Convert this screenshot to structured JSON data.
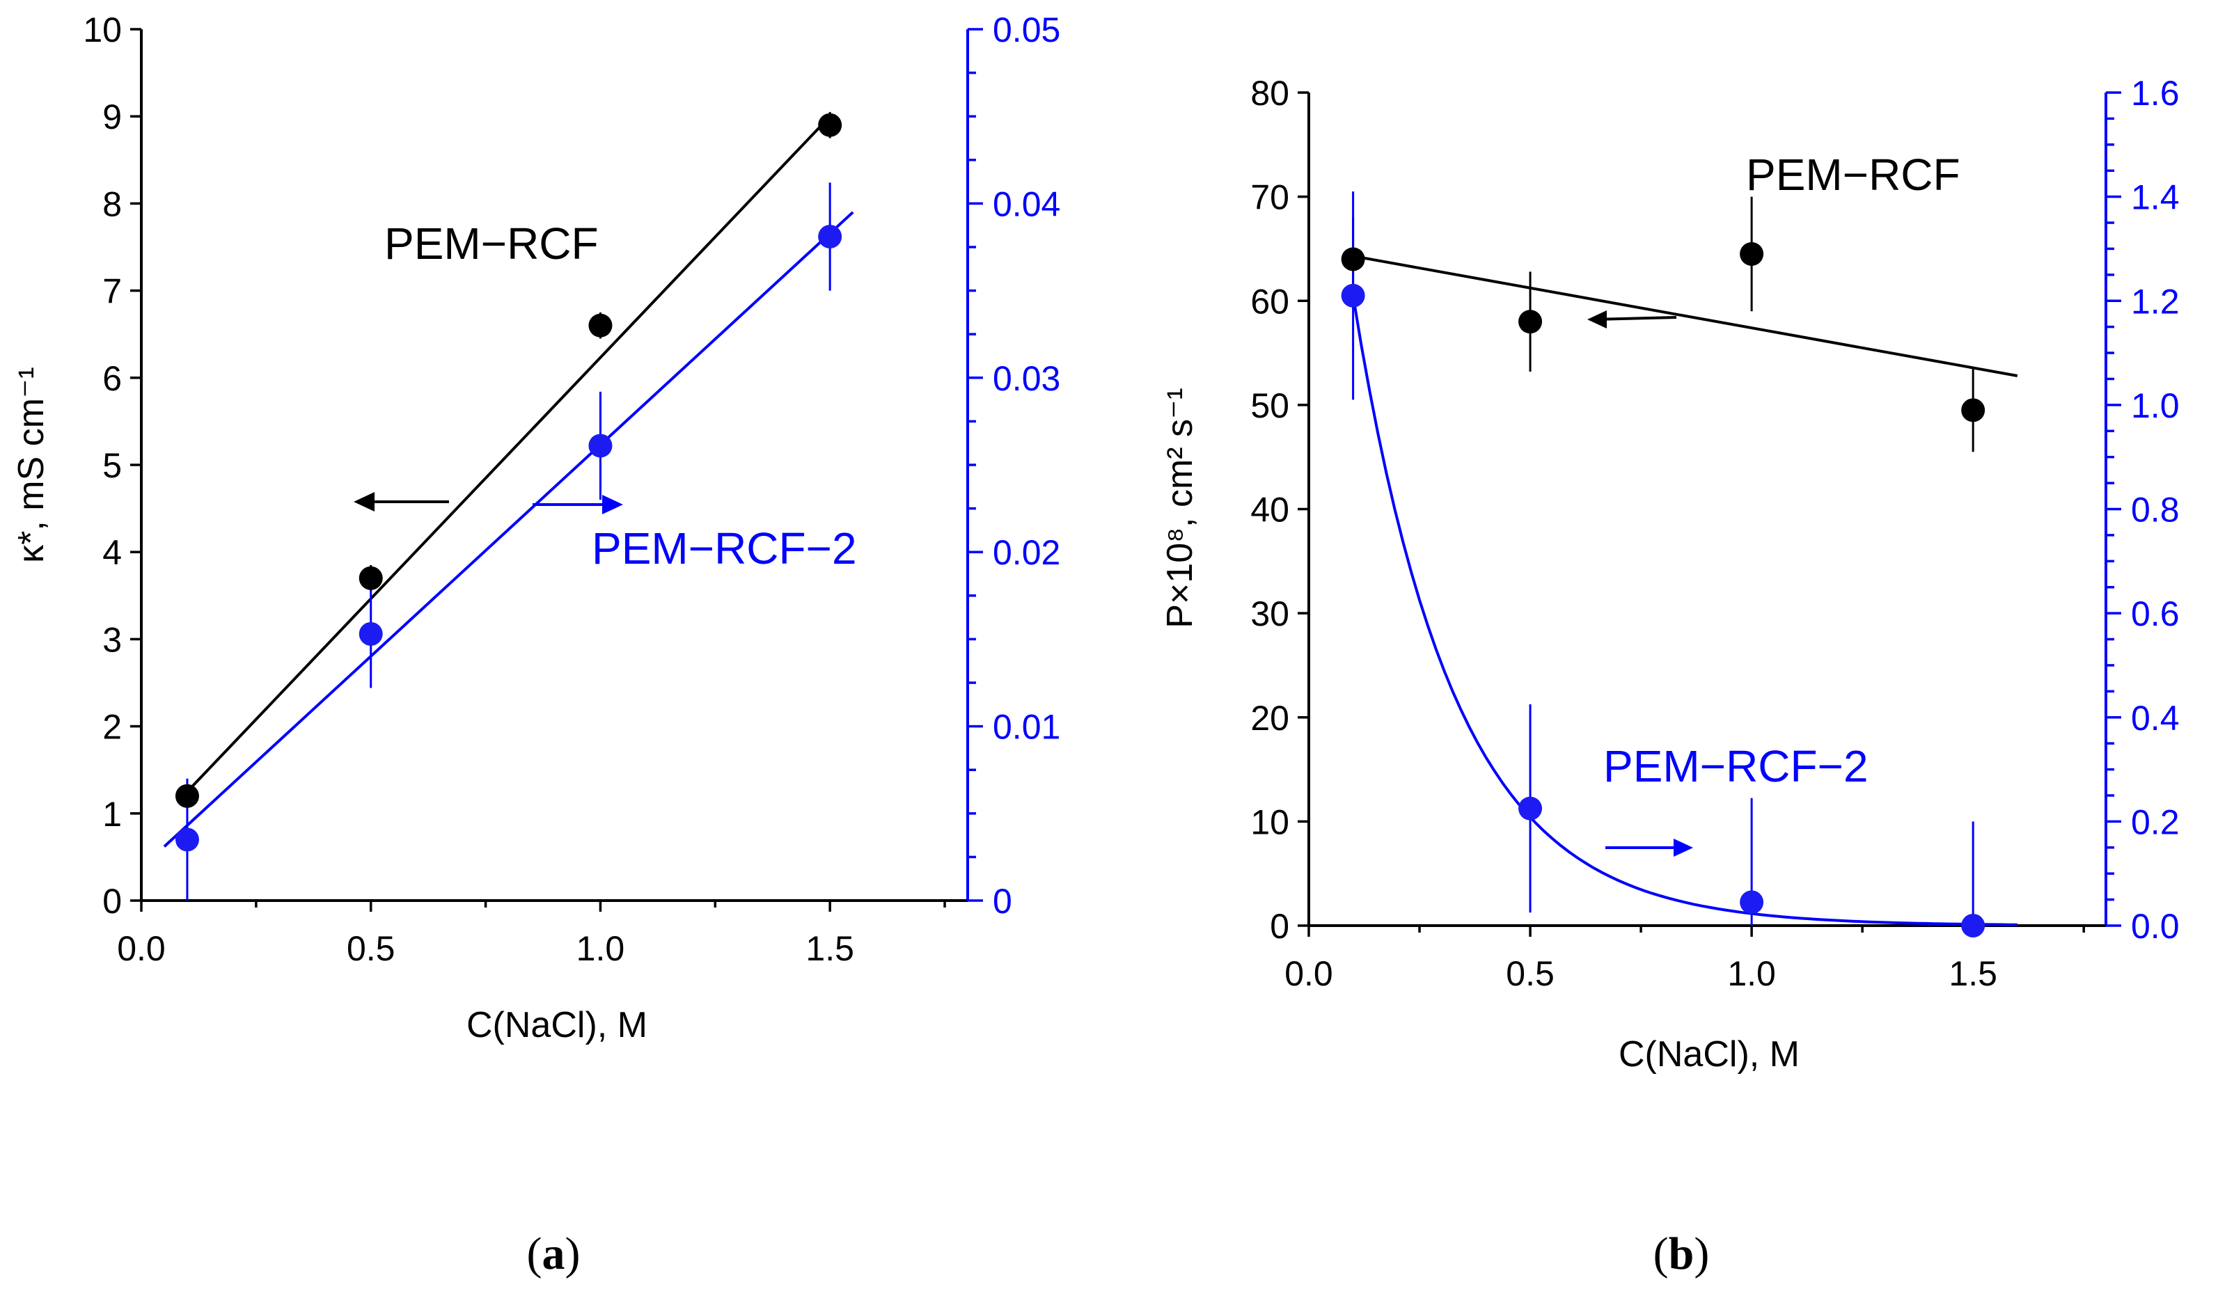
{
  "colors": {
    "black": "#000000",
    "blue": "#0000ff",
    "blue_point": "#1c1cf2"
  },
  "chart_data": [
    {
      "id": "a",
      "type": "scatter",
      "caption_open": "(",
      "caption_letter": "a",
      "caption_close": ")",
      "xlabel": "C(NaCl), M",
      "ylabel_left": "κ*, mS cm⁻¹",
      "ylabel_right": "",
      "xlim": [
        0,
        1.8
      ],
      "ylim_left": [
        0,
        10
      ],
      "ylim_right": [
        0,
        0.05
      ],
      "x_ticks": [
        0.0,
        0.5,
        1.0,
        1.5
      ],
      "x_tick_labels": [
        "0.0",
        "0.5",
        "1.0",
        "1.5"
      ],
      "y_left_ticks": [
        0,
        1,
        2,
        3,
        4,
        5,
        6,
        7,
        8,
        9,
        10
      ],
      "y_left_tick_labels": [
        "0",
        "1",
        "2",
        "3",
        "4",
        "5",
        "6",
        "7",
        "8",
        "9",
        "10"
      ],
      "y_right_ticks": [
        0,
        0.01,
        0.02,
        0.03,
        0.04,
        0.05
      ],
      "y_right_tick_labels": [
        "0",
        "0.01",
        "0.02",
        "0.03",
        "0.04",
        "0.05"
      ],
      "series": [
        {
          "name": "PEM−RCF",
          "axis": "left",
          "color": "#000000",
          "x": [
            0.1,
            0.5,
            1.0,
            1.5
          ],
          "y": [
            1.2,
            3.7,
            6.6,
            8.9
          ],
          "err": [
            0.1,
            0.15,
            0.15,
            0.15
          ],
          "fit": {
            "type": "linear",
            "x": [
              0.1,
              1.5
            ],
            "y": [
              1.25,
              9.0
            ]
          },
          "label_position": "center",
          "arrow_direction": "left"
        },
        {
          "name": "PEM−RCF−2",
          "axis": "right",
          "color": "#0000ff",
          "x": [
            0.1,
            0.5,
            1.0,
            1.5
          ],
          "y": [
            0.0035,
            0.0153,
            0.0261,
            0.0381
          ],
          "err": [
            0.0035,
            0.0031,
            0.0031,
            0.0031
          ],
          "fit": {
            "type": "linear",
            "x": [
              0.05,
              1.55
            ],
            "y": [
              0.0031,
              0.0395
            ]
          },
          "label_position": "center-right",
          "arrow_direction": "right"
        }
      ]
    },
    {
      "id": "b",
      "type": "scatter",
      "caption_open": "(",
      "caption_letter": "b",
      "caption_close": ")",
      "xlabel": "C(NaCl), M",
      "ylabel_left": "P×10⁸, cm² s⁻¹",
      "ylabel_right": "",
      "xlim": [
        0,
        1.8
      ],
      "ylim_left": [
        0,
        80
      ],
      "ylim_right": [
        0,
        1.6
      ],
      "x_ticks": [
        0.0,
        0.5,
        1.0,
        1.5
      ],
      "x_tick_labels": [
        "0.0",
        "0.5",
        "1.0",
        "1.5"
      ],
      "y_left_ticks": [
        0,
        10,
        20,
        30,
        40,
        50,
        60,
        70,
        80
      ],
      "y_left_tick_labels": [
        "0",
        "10",
        "20",
        "30",
        "40",
        "50",
        "60",
        "70",
        "80"
      ],
      "y_right_ticks": [
        0,
        0.2,
        0.4,
        0.6,
        0.8,
        1.0,
        1.2,
        1.4,
        1.6
      ],
      "y_right_tick_labels": [
        "0.0",
        "0.2",
        "0.4",
        "0.6",
        "0.8",
        "1.0",
        "1.2",
        "1.4",
        "1.6"
      ],
      "series": [
        {
          "name": "PEM−RCF",
          "axis": "left",
          "color": "#000000",
          "x": [
            0.1,
            0.5,
            1.0,
            1.5
          ],
          "y": [
            64,
            58,
            64.5,
            49.5
          ],
          "err": [
            4.0,
            4.8,
            5.5,
            4.0
          ],
          "fit": {
            "type": "linear",
            "x": [
              0.1,
              1.6
            ],
            "y": [
              64.3,
              52.8
            ]
          },
          "label_position": "top-right",
          "arrow_direction": "left"
        },
        {
          "name": "PEM−RCF−2",
          "axis": "right",
          "color": "#0000ff",
          "x": [
            0.1,
            0.5,
            1.0,
            1.5
          ],
          "y": [
            1.21,
            0.225,
            0.045,
            0.0
          ],
          "err": [
            0.2,
            0.2,
            0.2,
            0.2
          ],
          "fit": {
            "type": "exponential",
            "x0": 0.1,
            "y0": 1.21,
            "decay": 4.4,
            "x_end": 1.6
          },
          "label_position": "bottom-center",
          "arrow_direction": "right"
        }
      ]
    }
  ]
}
